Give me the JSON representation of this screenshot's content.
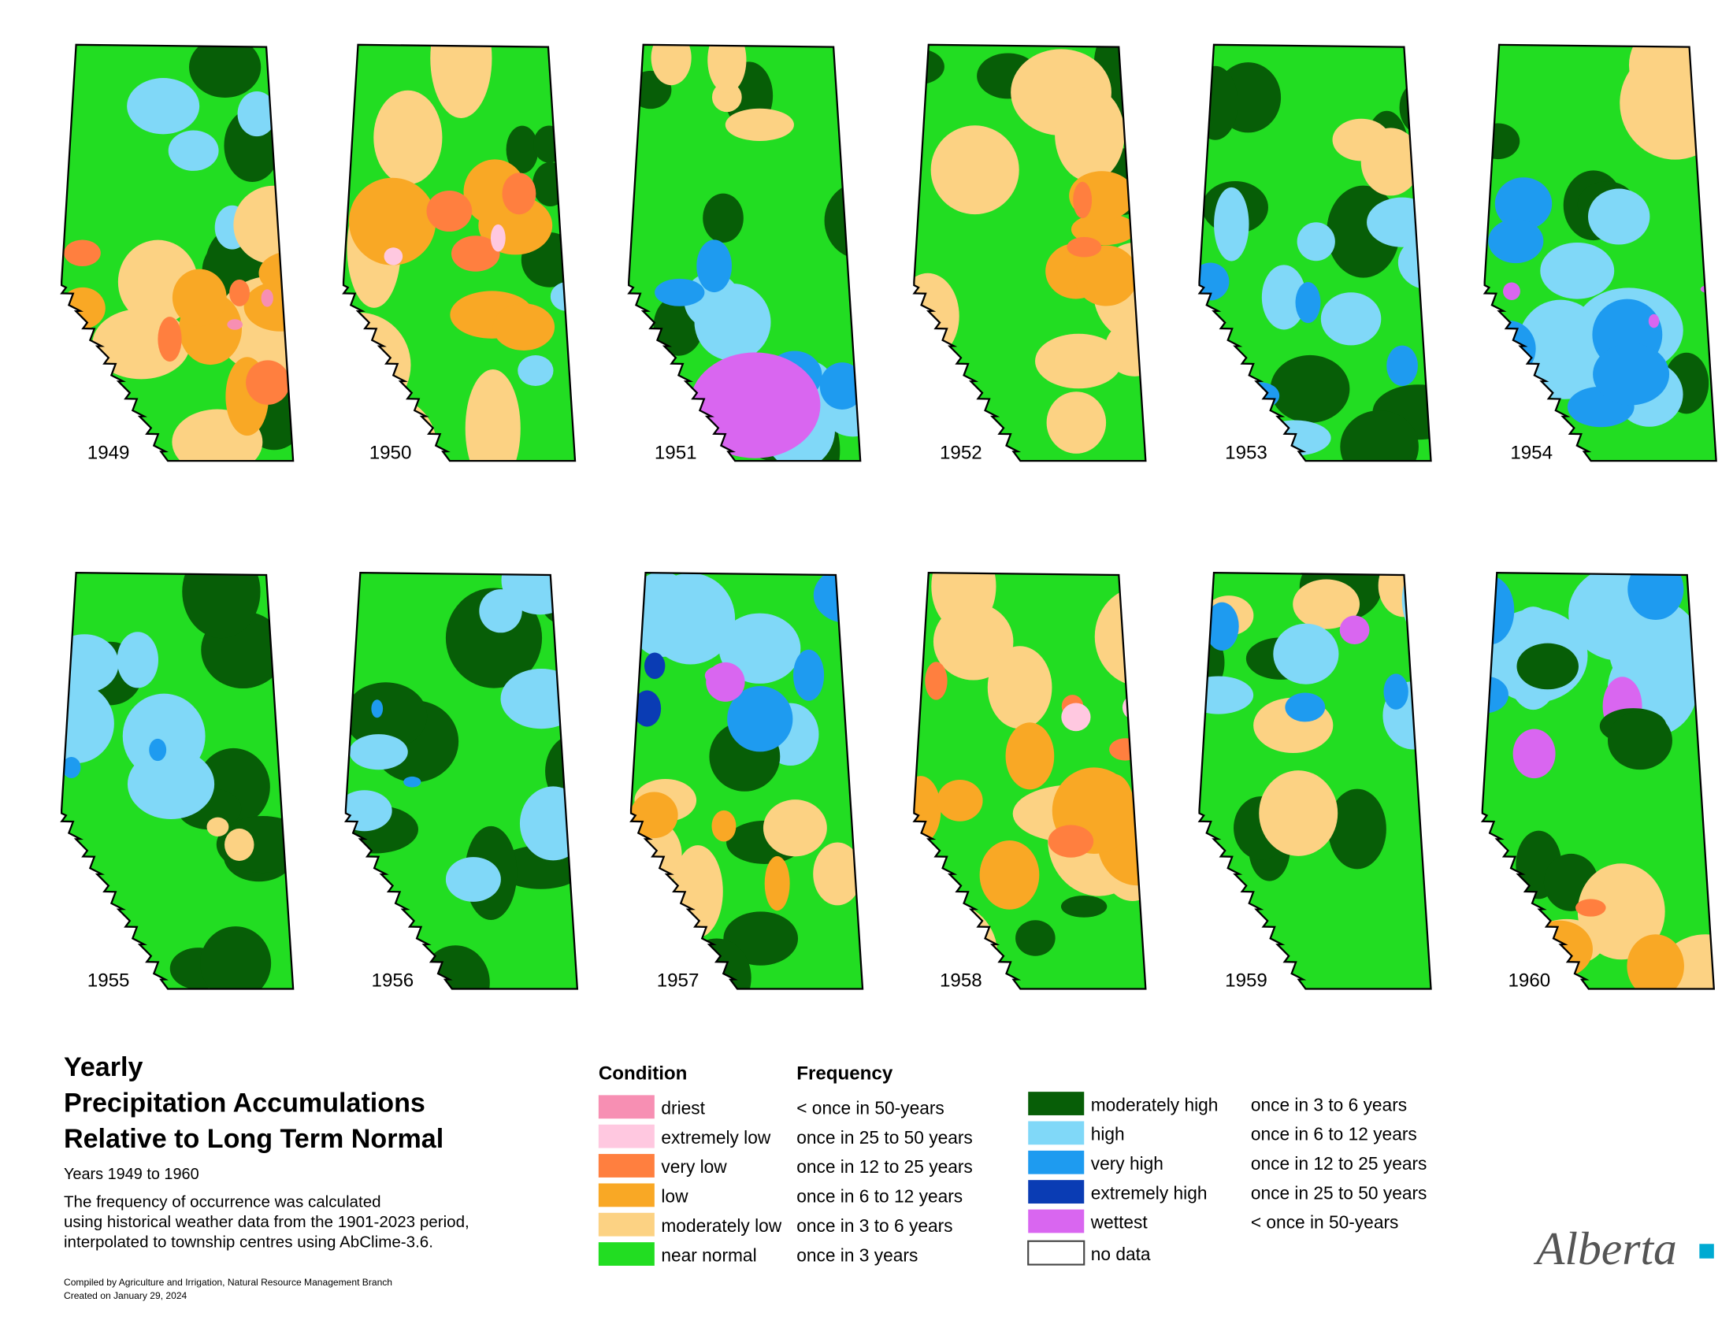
{
  "title": [
    "Yearly",
    "Precipitation Accumulations",
    "Relative to Long Term Normal"
  ],
  "subtitle": "Years 1949 to 1960",
  "description": [
    "The frequency of occurrence was calculated",
    "using historical weather data from the 1901-2023 period,",
    "interpolated to township centres using AbClime-3.6."
  ],
  "credits": [
    "Compiled by Agriculture and Irrigation, Natural Resource Management Branch",
    "Created on January 29, 2024"
  ],
  "maps": [
    {
      "year": "1949"
    },
    {
      "year": "1950"
    },
    {
      "year": "1951"
    },
    {
      "year": "1952"
    },
    {
      "year": "1953"
    },
    {
      "year": "1954"
    },
    {
      "year": "1955"
    },
    {
      "year": "1956"
    },
    {
      "year": "1957"
    },
    {
      "year": "1958"
    },
    {
      "year": "1959"
    },
    {
      "year": "1960"
    }
  ],
  "legend": {
    "condition_heading": "Condition",
    "frequency_heading": "Frequency",
    "items": [
      {
        "condition": "driest",
        "frequency": "< once in 50-years",
        "color": "#f78fb3"
      },
      {
        "condition": "extremely low",
        "frequency": "once in 25 to 50 years",
        "color": "#ffc8e0"
      },
      {
        "condition": "very low",
        "frequency": "once in 12 to 25 years",
        "color": "#ff7f3f"
      },
      {
        "condition": "low",
        "frequency": "once in 6 to 12 years",
        "color": "#f9a825"
      },
      {
        "condition": "moderately low",
        "frequency": "once in 3 to 6 years",
        "color": "#fcd283"
      },
      {
        "condition": "near normal",
        "frequency": "once in 3 years",
        "color": "#22dd22"
      },
      {
        "condition": "moderately high",
        "frequency": "once in 3 to 6 years",
        "color": "#075e07"
      },
      {
        "condition": "high",
        "frequency": "once in 6 to 12 years",
        "color": "#80d8f8"
      },
      {
        "condition": "very high",
        "frequency": "once in 12 to 25 years",
        "color": "#1e9bf0"
      },
      {
        "condition": "extremely high",
        "frequency": "once in 25 to 50 years",
        "color": "#0a3cb4"
      },
      {
        "condition": "wettest",
        "frequency": "< once in 50-years",
        "color": "#d966f0"
      },
      {
        "condition": "no data",
        "color": "#ffffff"
      }
    ]
  },
  "logo": "Alberta"
}
